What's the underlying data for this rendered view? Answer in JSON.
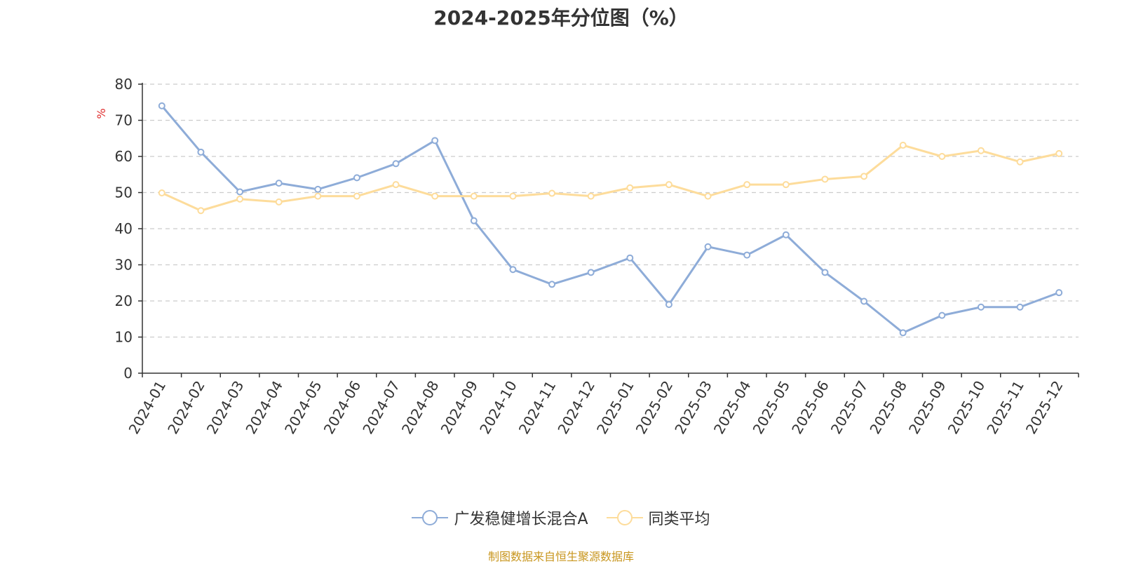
{
  "title": "2024-2025年分位图（%）",
  "source": "制图数据来自恒生聚源数据库",
  "chart_data": {
    "type": "line",
    "title": "2024-2025年分位图（%）",
    "ylabel": "%",
    "ylim": [
      0,
      80
    ],
    "yticks": [
      0,
      10,
      20,
      30,
      40,
      50,
      60,
      70,
      80
    ],
    "grid": true,
    "legend_position": "bottom",
    "categories": [
      "2024-01",
      "2024-02",
      "2024-03",
      "2024-04",
      "2024-05",
      "2024-06",
      "2024-07",
      "2024-08",
      "2024-09",
      "2024-10",
      "2024-11",
      "2024-12",
      "2025-01",
      "2025-02",
      "2025-03",
      "2025-04",
      "2025-05",
      "2025-06",
      "2025-07",
      "2025-08",
      "2025-09",
      "2025-10",
      "2025-11",
      "2025-12"
    ],
    "series": [
      {
        "name": "广发稳健增长混合A",
        "color": "#8eacd8",
        "values": [
          74.0,
          61.2,
          50.2,
          52.6,
          50.9,
          54.1,
          58.0,
          64.4,
          42.2,
          28.7,
          24.6,
          27.9,
          31.9,
          19.0,
          35.0,
          32.7,
          38.3,
          27.9,
          19.9,
          11.2,
          16.0,
          18.3,
          18.3,
          22.3
        ]
      },
      {
        "name": "同类平均",
        "color": "#fddc9b",
        "values": [
          49.9,
          45.0,
          48.2,
          47.4,
          49.0,
          49.0,
          52.2,
          49.0,
          49.0,
          49.0,
          49.8,
          49.0,
          51.3,
          52.2,
          49.0,
          52.2,
          52.2,
          53.7,
          54.5,
          63.1,
          60.0,
          61.6,
          58.5,
          60.8
        ]
      }
    ]
  }
}
